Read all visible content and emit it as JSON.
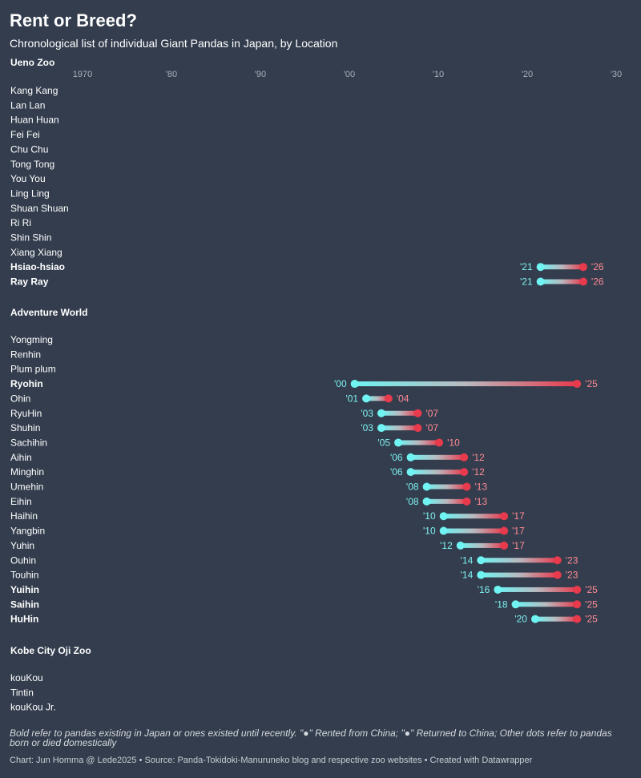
{
  "header": {
    "title": "Rent or Breed?",
    "subtitle": "Chronological list of individual Giant Pandas in Japan, by Location"
  },
  "footer": {
    "note": "Bold refer to pandas existing in Japan or ones existed until recently. \"●\" Rented from China; \"●\" Returned to China; Other dots refer to pandas born or died domestically",
    "credit": "Chart: Jun Homma @ Lede2025 • Source: Panda-Tokidoki-Manuruneko blog and respective zoo websites • Created with Datawrapper"
  },
  "colors": {
    "background": "#333d4d",
    "start_dot": "#6ff3f3",
    "end_dot": "#e83a4d",
    "start_label": "#7ef0f0",
    "end_label": "#ff8a94",
    "axis_label": "#a9b0bb"
  },
  "chart_data": {
    "type": "range-dot",
    "xlim": [
      1970,
      2030
    ],
    "x_ticks": [
      {
        "value": 1970,
        "label": "1970"
      },
      {
        "value": 1980,
        "label": "'80"
      },
      {
        "value": 1990,
        "label": "'90"
      },
      {
        "value": 2000,
        "label": "'00"
      },
      {
        "value": 2010,
        "label": "'10"
      },
      {
        "value": 2020,
        "label": "'20"
      },
      {
        "value": 2030,
        "label": "'30"
      }
    ],
    "groups": [
      {
        "name": "Ueno Zoo",
        "pandas": [
          {
            "name": "Kang Kang",
            "bold": false
          },
          {
            "name": "Lan Lan",
            "bold": false
          },
          {
            "name": "Huan Huan",
            "bold": false
          },
          {
            "name": "Fei Fei",
            "bold": false
          },
          {
            "name": "Chu Chu",
            "bold": false
          },
          {
            "name": "Tong Tong",
            "bold": false
          },
          {
            "name": "You You",
            "bold": false
          },
          {
            "name": "Ling Ling",
            "bold": false
          },
          {
            "name": "Shuan Shuan",
            "bold": false
          },
          {
            "name": "Ri Ri",
            "bold": false
          },
          {
            "name": "Shin Shin",
            "bold": false
          },
          {
            "name": "Xiang Xiang",
            "bold": false
          },
          {
            "name": "Hsiao-hsiao",
            "bold": true,
            "start": 2021.5,
            "end": 2026.3,
            "start_label": "'21",
            "end_label": "'26"
          },
          {
            "name": "Ray Ray",
            "bold": true,
            "start": 2021.5,
            "end": 2026.3,
            "start_label": "'21",
            "end_label": "'26"
          }
        ]
      },
      {
        "name": "Adventure World",
        "pandas": [
          {
            "name": "Yongming",
            "bold": false
          },
          {
            "name": "Renhin",
            "bold": false
          },
          {
            "name": "Plum plum",
            "bold": false
          },
          {
            "name": "Ryohin",
            "bold": true,
            "start": 2000.6,
            "end": 2025.6,
            "start_label": "'00",
            "end_label": "'25"
          },
          {
            "name": "Ohin",
            "bold": false,
            "start": 2001.9,
            "end": 2004.4,
            "start_label": "'01",
            "end_label": "'04"
          },
          {
            "name": "RyuHin",
            "bold": false,
            "start": 2003.6,
            "end": 2007.7,
            "start_label": "'03",
            "end_label": "'07"
          },
          {
            "name": "Shuhin",
            "bold": false,
            "start": 2003.6,
            "end": 2007.7,
            "start_label": "'03",
            "end_label": "'07"
          },
          {
            "name": "Sachihin",
            "bold": false,
            "start": 2005.5,
            "end": 2010.1,
            "start_label": "'05",
            "end_label": "'10"
          },
          {
            "name": "Aihin",
            "bold": false,
            "start": 2006.9,
            "end": 2012.9,
            "start_label": "'06",
            "end_label": "'12"
          },
          {
            "name": "Minghin",
            "bold": false,
            "start": 2006.9,
            "end": 2012.9,
            "start_label": "'06",
            "end_label": "'12"
          },
          {
            "name": "Umehin",
            "bold": false,
            "start": 2008.7,
            "end": 2013.2,
            "start_label": "'08",
            "end_label": "'13"
          },
          {
            "name": "Eihin",
            "bold": false,
            "start": 2008.7,
            "end": 2013.2,
            "start_label": "'08",
            "end_label": "'13"
          },
          {
            "name": "Haihin",
            "bold": false,
            "start": 2010.6,
            "end": 2017.4,
            "start_label": "'10",
            "end_label": "'17"
          },
          {
            "name": "Yangbin",
            "bold": false,
            "start": 2010.6,
            "end": 2017.4,
            "start_label": "'10",
            "end_label": "'17"
          },
          {
            "name": "Yuhin",
            "bold": false,
            "start": 2012.5,
            "end": 2017.4,
            "start_label": "'12",
            "end_label": "'17"
          },
          {
            "name": "Ouhin",
            "bold": false,
            "start": 2014.8,
            "end": 2023.4,
            "start_label": "'14",
            "end_label": "'23"
          },
          {
            "name": "Touhin",
            "bold": false,
            "start": 2014.8,
            "end": 2023.4,
            "start_label": "'14",
            "end_label": "'23"
          },
          {
            "name": "Yuihin",
            "bold": true,
            "start": 2016.7,
            "end": 2025.6,
            "start_label": "'16",
            "end_label": "'25"
          },
          {
            "name": "Saihin",
            "bold": true,
            "start": 2018.7,
            "end": 2025.6,
            "start_label": "'18",
            "end_label": "'25"
          },
          {
            "name": "HuHin",
            "bold": true,
            "start": 2020.9,
            "end": 2025.6,
            "start_label": "'20",
            "end_label": "'25"
          }
        ]
      },
      {
        "name": "Kobe City Oji Zoo",
        "pandas": [
          {
            "name": "kouKou",
            "bold": false
          },
          {
            "name": "Tintin",
            "bold": false
          },
          {
            "name": "kouKou Jr.",
            "bold": false
          }
        ]
      }
    ]
  }
}
